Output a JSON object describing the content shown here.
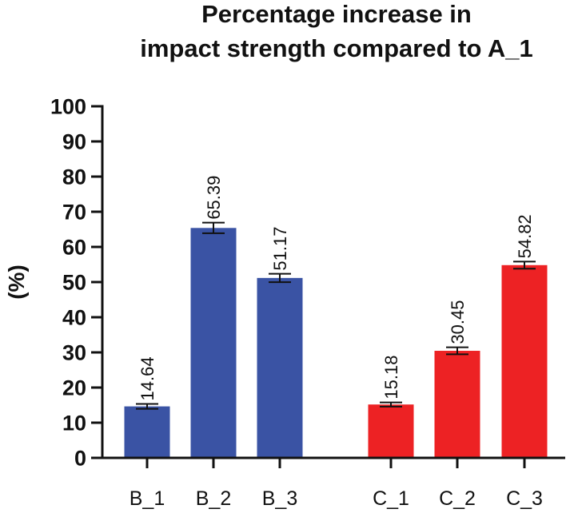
{
  "chart_data": {
    "type": "bar",
    "title_lines": [
      "Percentage increase in",
      "impact strength compared to A_1"
    ],
    "xlabel": "",
    "ylabel": "(%)",
    "ylim": [
      0,
      100
    ],
    "yticks": [
      0,
      10,
      20,
      30,
      40,
      50,
      60,
      70,
      80,
      90,
      100
    ],
    "categories": [
      "B_1",
      "B_2",
      "B_3",
      "C_1",
      "C_2",
      "C_3"
    ],
    "values": [
      14.64,
      65.39,
      51.17,
      15.18,
      30.45,
      54.82
    ],
    "value_labels": [
      "14.64",
      "65.39",
      "51.17",
      "15.18",
      "30.45",
      "54.82"
    ],
    "errors": [
      0.7,
      1.5,
      1.2,
      0.6,
      1.0,
      1.0
    ],
    "groups": [
      {
        "name": "B",
        "color": "#3a53a4",
        "members": [
          "B_1",
          "B_2",
          "B_3"
        ]
      },
      {
        "name": "C",
        "color": "#ed2224",
        "members": [
          "C_1",
          "C_2",
          "C_3"
        ]
      }
    ],
    "grid": false,
    "legend": "none"
  }
}
